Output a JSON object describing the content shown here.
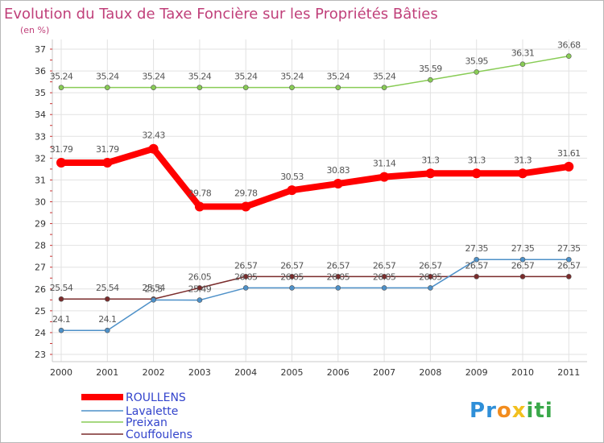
{
  "chart_data": {
    "type": "line",
    "title": "Evolution du Taux de Taxe Foncière sur les Propriétés Bâties",
    "subtitle": "(en %)",
    "x": [
      "2000",
      "2001",
      "2002",
      "2003",
      "2004",
      "2005",
      "2006",
      "2007",
      "2008",
      "2009",
      "2010",
      "2011"
    ],
    "ylim": [
      23,
      37
    ],
    "yticks": [
      "23",
      "24",
      "25",
      "26",
      "27",
      "28",
      "29",
      "30",
      "31",
      "32",
      "33",
      "34",
      "35",
      "36",
      "37"
    ],
    "grid": true,
    "legend_position": "bottom-left",
    "series": [
      {
        "name": "ROULLENS",
        "color": "#ff0000",
        "values": [
          31.79,
          31.79,
          32.43,
          29.78,
          29.78,
          30.53,
          30.83,
          31.14,
          31.3,
          31.3,
          31.3,
          31.61
        ],
        "labels": [
          "31.79",
          "31.79",
          "32.43",
          "29.78",
          "29.78",
          "30.53",
          "30.83",
          "31.14",
          "31.3",
          "31.3",
          "31.3",
          "31.61"
        ]
      },
      {
        "name": "Lavalette",
        "color": "#4d90c8",
        "values": [
          24.1,
          24.1,
          25.5,
          25.49,
          26.05,
          26.05,
          26.05,
          26.05,
          26.05,
          27.35,
          27.35,
          27.35
        ],
        "labels": [
          "24.1",
          "24.1",
          "25.5",
          "25.49",
          "26.05",
          "26.05",
          "26.05",
          "26.05",
          "26.05",
          "27.35",
          "27.35",
          "27.35"
        ]
      },
      {
        "name": "Preixan",
        "color": "#88cc55",
        "values": [
          35.24,
          35.24,
          35.24,
          35.24,
          35.24,
          35.24,
          35.24,
          35.24,
          35.59,
          35.95,
          36.31,
          36.68
        ],
        "labels": [
          "35.24",
          "35.24",
          "35.24",
          "35.24",
          "35.24",
          "35.24",
          "35.24",
          "35.24",
          "35.59",
          "35.95",
          "36.31",
          "36.68"
        ]
      },
      {
        "name": "Couffoulens",
        "color": "#7a2b2b",
        "values": [
          25.54,
          25.54,
          25.54,
          26.05,
          26.57,
          26.57,
          26.57,
          26.57,
          26.57,
          26.57,
          26.57,
          26.57
        ],
        "labels": [
          "25.54",
          "25.54",
          "25.54",
          "26.05",
          "26.57",
          "26.57",
          "26.57",
          "26.57",
          "26.57",
          "26.57",
          "26.57",
          "26.57"
        ]
      }
    ]
  },
  "branding": {
    "logo_text": "Proxiti",
    "logo_letters": [
      "P",
      "r",
      "o",
      "x",
      "i",
      "t",
      "i"
    ],
    "logo_colors": [
      "#2f8fd8",
      "#2f8fd8",
      "#f28c1e",
      "#f2c01e",
      "#3aa84a",
      "#3aa84a",
      "#3aa84a"
    ]
  },
  "colors": {
    "title": "#c0407a",
    "subtitle": "#c0407a",
    "axis_text": "#333333",
    "label_text": "#555555",
    "grid": "#e2e2e2",
    "legend_text": "#3344cc"
  }
}
